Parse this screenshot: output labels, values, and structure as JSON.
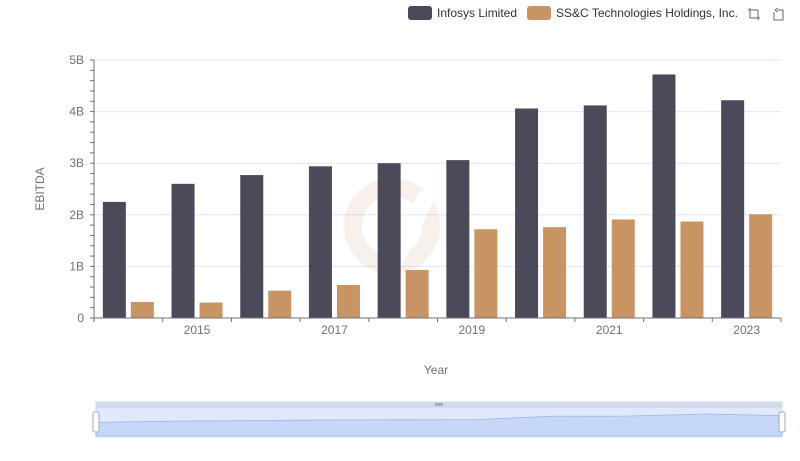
{
  "chart_data": {
    "type": "bar",
    "title": "",
    "xlabel": "Year",
    "ylabel": "EBITDA",
    "categories": [
      "2014",
      "2015",
      "2016",
      "2017",
      "2018",
      "2019",
      "2020",
      "2021",
      "2022",
      "2023"
    ],
    "x_tick_labels": [
      "2015",
      "2017",
      "2019",
      "2021",
      "2023"
    ],
    "y_tick_labels": [
      "0",
      "1B",
      "2B",
      "3B",
      "4B",
      "5B"
    ],
    "ylim": [
      0,
      5000000000
    ],
    "grid": true,
    "legend_position": "top-right",
    "series": [
      {
        "name": "Infosys Limited",
        "color": "#4a4a5a",
        "values": [
          2250000000,
          2600000000,
          2770000000,
          2940000000,
          3000000000,
          3060000000,
          4060000000,
          4120000000,
          4720000000,
          4220000000
        ]
      },
      {
        "name": "SS&C Technologies Holdings, Inc.",
        "color": "#c89463",
        "values": [
          310000000,
          300000000,
          530000000,
          640000000,
          930000000,
          1720000000,
          1760000000,
          1910000000,
          1870000000,
          2010000000
        ]
      }
    ]
  },
  "toolbox": {
    "icons": [
      "zoom-icon",
      "restore-icon"
    ]
  },
  "datazoom": {
    "start_percent": 0,
    "end_percent": 100
  }
}
